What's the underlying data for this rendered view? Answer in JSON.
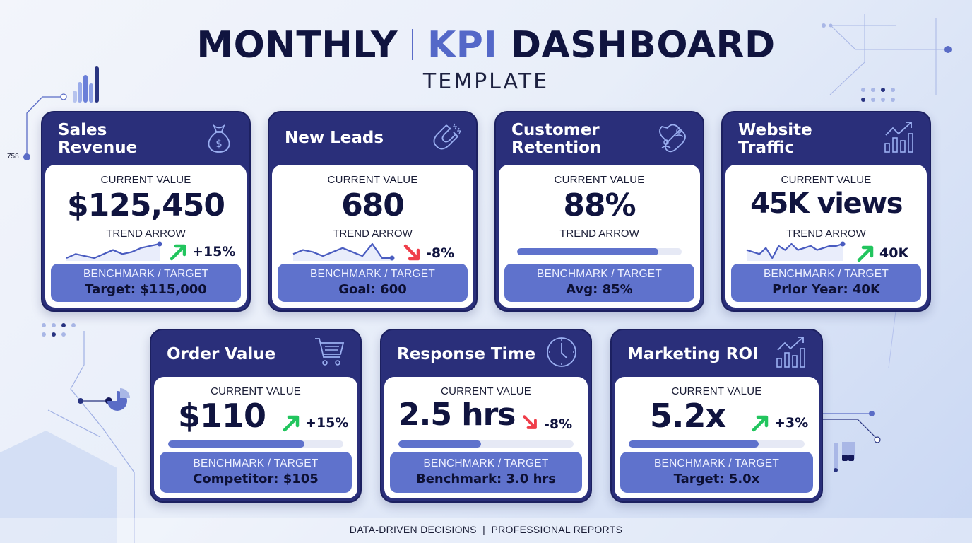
{
  "header": {
    "title_part1": "MONTHLY",
    "title_part2": "KPI",
    "title_part3": "DASHBOARD",
    "subtitle": "TEMPLATE"
  },
  "decor": {
    "side_number": "758"
  },
  "colors": {
    "navy": "#2a2f7a",
    "accent": "#5f72cc",
    "up": "#22c55e",
    "down": "#ef3e4a"
  },
  "cards": [
    {
      "title_line1": "Sales",
      "title_line2": "Revenue",
      "icon": "money-bag-icon",
      "current_label": "CURRENT VALUE",
      "value": "$125,450",
      "trend_label": "TREND ARROW",
      "trend": "up",
      "delta": "+15%",
      "bench_label": "BENCHMARK / TARGET",
      "bench_value": "Target: $115,000",
      "sparkline": [
        3,
        5,
        4,
        3,
        5,
        7,
        5,
        6,
        8,
        9,
        10
      ]
    },
    {
      "title_line1": "New Leads",
      "icon": "magnet-icon",
      "current_label": "CURRENT VALUE",
      "value": "680",
      "trend_label": "TREND ARROW",
      "trend": "down",
      "delta": "-8%",
      "bench_label": "BENCHMARK / TARGET",
      "bench_value": "Goal: 600",
      "sparkline": [
        5,
        7,
        6,
        4,
        6,
        8,
        6,
        4,
        10,
        3,
        3
      ]
    },
    {
      "title_line1": "Customer",
      "title_line2": "Retention",
      "icon": "retention-icon",
      "current_label": "CURRENT VALUE",
      "value": "88%",
      "trend_label": "TREND ARROW",
      "progress": 0.86,
      "bench_label": "BENCHMARK / TARGET",
      "bench_value": "Avg: 85%"
    },
    {
      "title_line1": "Website",
      "title_line2": "Traffic",
      "icon": "bar-chart-up-icon",
      "current_label": "CURRENT VALUE",
      "value": "45K views",
      "trend_label": "TREND ARROW",
      "trend": "up",
      "delta": "40K",
      "bench_label": "BENCHMARK / TARGET",
      "bench_value": "Prior Year: 40K",
      "sparkline": [
        6,
        5,
        4,
        7,
        2,
        8,
        6,
        9,
        6,
        7,
        8,
        6,
        7,
        8,
        8,
        9
      ]
    },
    {
      "title_line1": "Order Value",
      "icon": "shopping-cart-icon",
      "current_label": "CURRENT VALUE",
      "value": "$110",
      "trend": "up",
      "delta": "+15%",
      "progress": 0.78,
      "bench_label": "BENCHMARK / TARGET",
      "bench_value": "Competitor: $105"
    },
    {
      "title_line1": "Response Time",
      "icon": "clock-icon",
      "current_label": "CURRENT VALUE",
      "value": "2.5 hrs",
      "trend": "down",
      "delta": "-8%",
      "progress": 0.47,
      "bench_label": "BENCHMARK / TARGET",
      "bench_value": "Benchmark: 3.0 hrs"
    },
    {
      "title_line1": "Marketing ROI",
      "icon": "bar-chart-up-icon",
      "current_label": "CURRENT VALUE",
      "value": "5.2x",
      "trend": "up",
      "delta": "+3%",
      "progress": 0.74,
      "bench_label": "BENCHMARK / TARGET",
      "bench_value": "Target: 5.0x"
    }
  ],
  "footer": {
    "text": "DATA-DRIVEN DECISIONS  |  PROFESSIONAL REPORTS"
  }
}
